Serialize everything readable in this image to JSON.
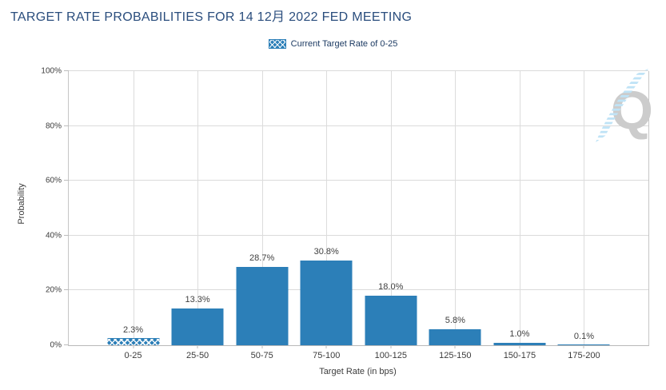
{
  "title": "TARGET RATE PROBABILITIES FOR 14 12月 2022 FED MEETING",
  "legend": {
    "label": "Current Target Rate of 0-25",
    "swatch": "crosshatch-blue"
  },
  "watermark": {
    "letter": "Q"
  },
  "colors": {
    "bar": "#2c7fb8",
    "title": "#2a4d7d",
    "hatch": "#ffffff",
    "grid": "#dadada",
    "axis": "#bdbdbd"
  },
  "chart_data": {
    "type": "bar",
    "title": "TARGET RATE PROBABILITIES FOR 14 12月 2022 FED MEETING",
    "categories": [
      "0-25",
      "25-50",
      "50-75",
      "75-100",
      "100-125",
      "125-150",
      "150-175",
      "175-200"
    ],
    "values": [
      2.3,
      13.3,
      28.7,
      30.8,
      18.0,
      5.8,
      1.0,
      0.1
    ],
    "value_labels": [
      "2.3%",
      "13.3%",
      "28.7%",
      "30.8%",
      "18.0%",
      "5.8%",
      "1.0%",
      "0.1%"
    ],
    "hatched_category": "0-25",
    "xlabel": "Target Rate (in bps)",
    "ylabel": "Probability",
    "ylim": [
      0,
      100
    ],
    "ytick_values": [
      0,
      20,
      40,
      60,
      80,
      100
    ],
    "ytick_labels": [
      "0%",
      "20%",
      "40%",
      "60%",
      "80%",
      "100%"
    ],
    "grid": true,
    "legend": [
      "Current Target Rate of 0-25"
    ],
    "legend_position": "top-center"
  }
}
